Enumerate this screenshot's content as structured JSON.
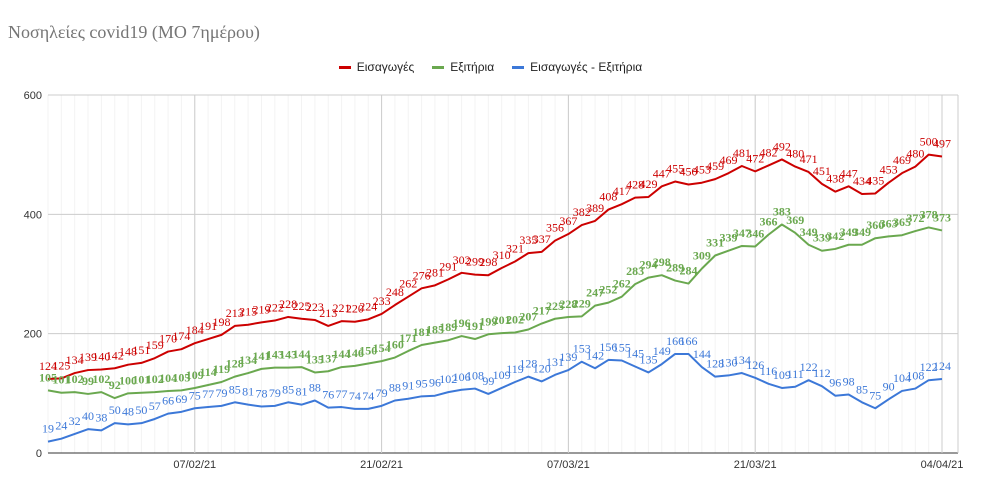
{
  "chart_data": {
    "type": "line",
    "title": "Νοσηλείες covid19 (ΜΟ 7ημέρου)",
    "xlabel": "",
    "ylabel": "",
    "ylim": [
      0,
      600
    ],
    "yticks": [
      "0",
      "200",
      "400",
      "600"
    ],
    "xticks": [
      "07/02/21",
      "21/02/21",
      "07/03/21",
      "21/03/21",
      "04/04/21"
    ],
    "grid": true,
    "legend": "top",
    "x": [
      "27/01/21",
      "28/01/21",
      "29/01/21",
      "30/01/21",
      "31/01/21",
      "01/02/21",
      "02/02/21",
      "03/02/21",
      "04/02/21",
      "05/02/21",
      "06/02/21",
      "07/02/21",
      "08/02/21",
      "09/02/21",
      "10/02/21",
      "11/02/21",
      "12/02/21",
      "13/02/21",
      "14/02/21",
      "15/02/21",
      "16/02/21",
      "17/02/21",
      "18/02/21",
      "19/02/21",
      "20/02/21",
      "21/02/21",
      "22/02/21",
      "23/02/21",
      "24/02/21",
      "25/02/21",
      "26/02/21",
      "27/02/21",
      "28/02/21",
      "01/03/21",
      "02/03/21",
      "03/03/21",
      "04/03/21",
      "05/03/21",
      "06/03/21",
      "07/03/21",
      "08/03/21",
      "09/03/21",
      "10/03/21",
      "11/03/21",
      "12/03/21",
      "13/03/21",
      "14/03/21",
      "15/03/21",
      "16/03/21",
      "17/03/21",
      "18/03/21",
      "19/03/21",
      "20/03/21",
      "21/03/21",
      "22/03/21",
      "23/03/21",
      "24/03/21",
      "25/03/21",
      "26/03/21",
      "27/03/21",
      "28/03/21",
      "29/03/21",
      "30/03/21",
      "31/03/21",
      "01/04/21",
      "02/04/21",
      "03/04/21",
      "04/04/21"
    ],
    "series": [
      {
        "name": "Εισαγωγές",
        "color": "#cc0000",
        "values": [
          124,
          125,
          134,
          139,
          140,
          142,
          148,
          151,
          159,
          170,
          174,
          184,
          191,
          198,
          213,
          215,
          219,
          222,
          228,
          225,
          223,
          213,
          221,
          220,
          224,
          233,
          248,
          262,
          276,
          281,
          291,
          302,
          299,
          298,
          310,
          321,
          335,
          337,
          356,
          367,
          382,
          389,
          408,
          417,
          428,
          429,
          447,
          455,
          450,
          453,
          459,
          469,
          481,
          472,
          482,
          492,
          480,
          471,
          451,
          438,
          447,
          434,
          435,
          453,
          469,
          480,
          500,
          497
        ]
      },
      {
        "name": "Εξιτήρια",
        "color": "#6aa84f",
        "values": [
          105,
          101,
          102,
          99,
          102,
          92,
          100,
          101,
          102,
          104,
          105,
          109,
          114,
          119,
          128,
          134,
          141,
          143,
          143,
          144,
          135,
          137,
          144,
          146,
          150,
          154,
          160,
          171,
          181,
          185,
          189,
          196,
          191,
          199,
          201,
          202,
          207,
          217,
          225,
          228,
          229,
          247,
          252,
          262,
          283,
          294,
          298,
          289,
          284,
          309,
          331,
          339,
          347,
          346,
          366,
          383,
          369,
          349,
          339,
          342,
          349,
          349,
          360,
          363,
          365,
          372,
          378,
          373
        ]
      },
      {
        "name": "Εισαγωγές - Εξιτήρια",
        "color": "#3c78d8",
        "values": [
          19,
          24,
          32,
          40,
          38,
          50,
          48,
          50,
          57,
          66,
          69,
          75,
          77,
          79,
          85,
          81,
          78,
          79,
          85,
          81,
          88,
          76,
          77,
          74,
          74,
          79,
          88,
          91,
          95,
          96,
          102,
          106,
          108,
          99,
          109,
          119,
          128,
          120,
          131,
          139,
          153,
          142,
          156,
          155,
          145,
          135,
          149,
          166,
          166,
          144,
          128,
          130,
          134,
          126,
          116,
          109,
          111,
          122,
          112,
          96,
          98,
          85,
          75,
          90,
          104,
          108,
          122,
          124
        ]
      }
    ]
  }
}
